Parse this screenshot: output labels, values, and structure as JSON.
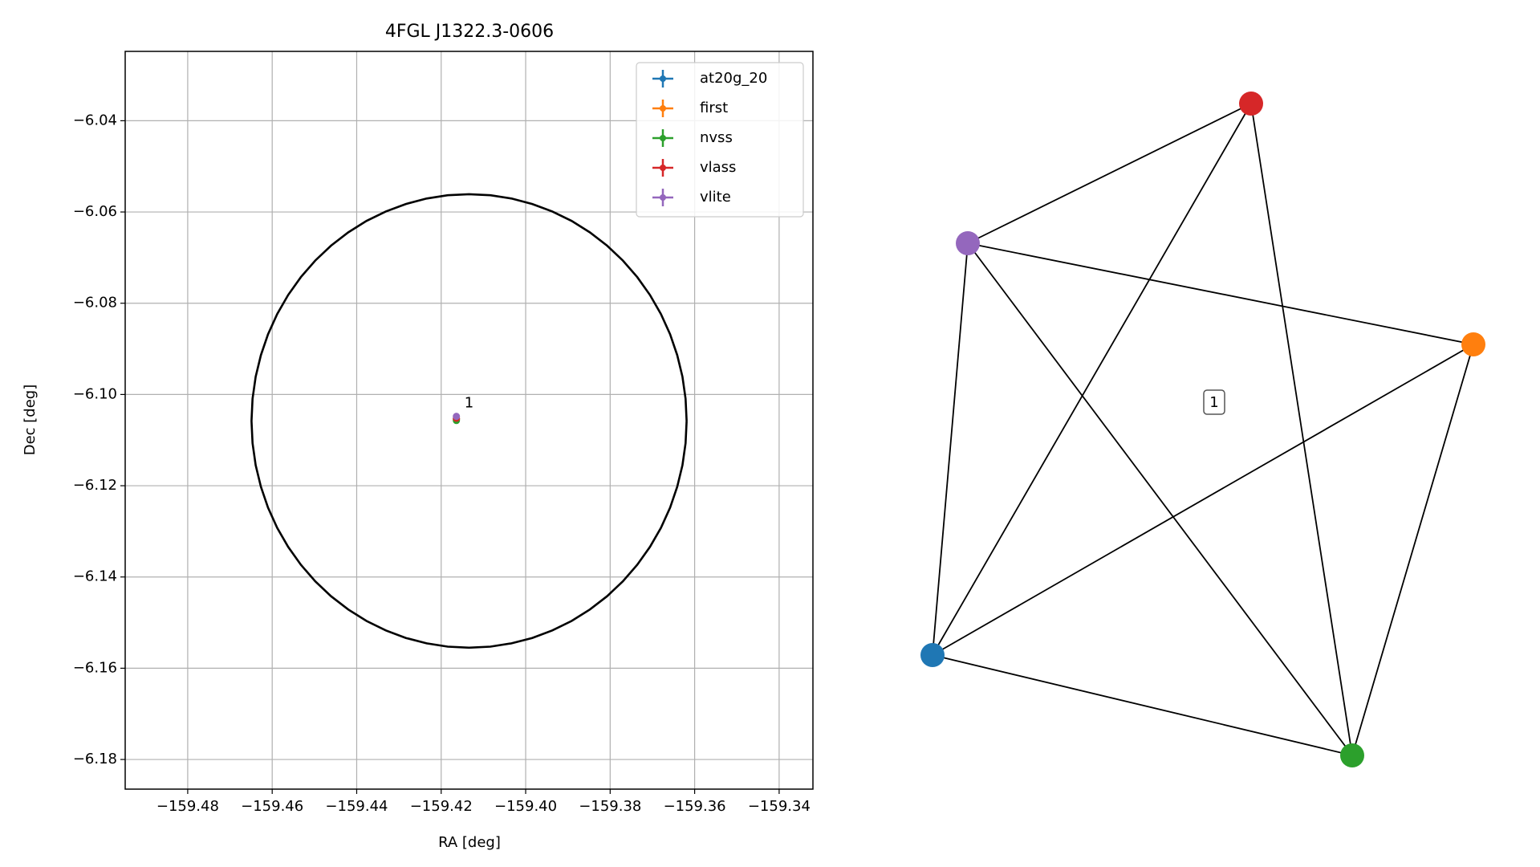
{
  "chart_data": {
    "type": "scatter",
    "title": "4FGL J1322.3-0606",
    "xlabel": "RA [deg]",
    "ylabel": "Dec [deg]",
    "xlim": [
      -159.4948,
      -159.332
    ],
    "ylim": [
      -6.1865,
      -6.0248
    ],
    "xticks": [
      {
        "value": -159.48,
        "label": "−159.48"
      },
      {
        "value": -159.46,
        "label": "−159.46"
      },
      {
        "value": -159.44,
        "label": "−159.44"
      },
      {
        "value": -159.42,
        "label": "−159.42"
      },
      {
        "value": -159.4,
        "label": "−159.40"
      },
      {
        "value": -159.38,
        "label": "−159.38"
      },
      {
        "value": -159.36,
        "label": "−159.36"
      },
      {
        "value": -159.34,
        "label": "−159.34"
      }
    ],
    "yticks": [
      {
        "value": -6.04,
        "label": "−6.04"
      },
      {
        "value": -6.06,
        "label": "−6.06"
      },
      {
        "value": -6.08,
        "label": "−6.08"
      },
      {
        "value": -6.1,
        "label": "−6.10"
      },
      {
        "value": -6.12,
        "label": "−6.12"
      },
      {
        "value": -6.14,
        "label": "−6.14"
      },
      {
        "value": -6.16,
        "label": "−6.16"
      },
      {
        "value": -6.18,
        "label": "−6.18"
      }
    ],
    "grid": true,
    "legend": "upper right",
    "ellipse": {
      "center": [
        -159.4134,
        -6.1058
      ],
      "ra_radius": 0.0515,
      "dec_radius": 0.0497
    },
    "series": [
      {
        "name": "at20g_20",
        "color": "#1f77b4",
        "x": [
          -159.4164
        ],
        "values": [
          -6.1054
        ]
      },
      {
        "name": "first",
        "color": "#ff7f0e",
        "x": [
          -159.4164
        ],
        "values": [
          -6.1054
        ]
      },
      {
        "name": "nvss",
        "color": "#2ca02c",
        "x": [
          -159.4164
        ],
        "values": [
          -6.1057
        ]
      },
      {
        "name": "vlass",
        "color": "#d62728",
        "x": [
          -159.4164
        ],
        "values": [
          -6.1052
        ]
      },
      {
        "name": "vlite",
        "color": "#9467bd",
        "x": [
          -159.4164
        ],
        "values": [
          -6.1048
        ]
      }
    ],
    "annotation": {
      "text": "1",
      "x": -159.4164,
      "y": -6.1048
    }
  },
  "graph": {
    "label": "1",
    "nodes": [
      {
        "color": "#1f77b4"
      },
      {
        "color": "#ff7f0e"
      },
      {
        "color": "#2ca02c"
      },
      {
        "color": "#d62728"
      },
      {
        "color": "#9467bd"
      }
    ],
    "edges": [
      [
        4,
        3
      ],
      [
        4,
        1
      ],
      [
        4,
        0
      ],
      [
        4,
        2
      ],
      [
        3,
        0
      ],
      [
        3,
        2
      ],
      [
        1,
        0
      ],
      [
        1,
        2
      ],
      [
        0,
        2
      ]
    ]
  }
}
